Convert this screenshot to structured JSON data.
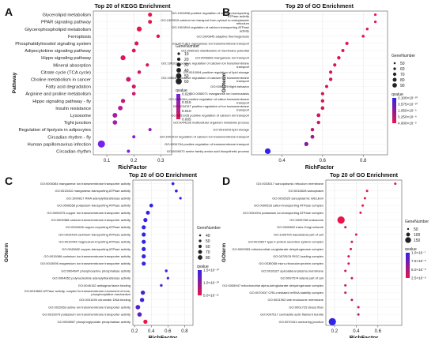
{
  "panels": [
    {
      "letter": "A",
      "chart_data": {
        "type": "scatter",
        "title": "Top 20 of KEGG Enrichment",
        "xlabel": "RichFactor",
        "ylabel": "Pathway",
        "xlim": [
          0.05,
          0.34
        ],
        "xticks": [
          0.1,
          0.2,
          0.3
        ],
        "xtick_labels": [
          "0.1",
          "0.2",
          "0.3"
        ],
        "size_legend_title": "GeneNumber",
        "size_legend": [
          10,
          20,
          30,
          40,
          50,
          60
        ],
        "color_legend_title": "qvalue",
        "color_legend_labels": [
          "0.020",
          "0.015",
          "0.010",
          "0.005"
        ],
        "color_scale": [
          "#e8144a",
          "#7722e8"
        ],
        "categories": [
          "Glycerolipid metabolism",
          "PPAR signaling pathway",
          "Glycerophospholipid metabolism",
          "Ferroptosis",
          "Phosphatidylinositol signaling system",
          "Adipocytokine signaling pathway",
          "Hippo signaling pathway",
          "Mineral absorption",
          "Citrate cycle (TCA cycle)",
          "Choline metabolism in cancer",
          "Fatty acid degradation",
          "Arginine and proline metabolism",
          "Hippo signaling pathway - fly",
          "Insulin resistance",
          "Lysosome",
          "Tight junction",
          "Regulation of lipolysis in adipocytes",
          "Circadian rhythm - fly",
          "Human papillomavirus infection",
          "Circadian rhythm"
        ],
        "x": [
          0.26,
          0.26,
          0.22,
          0.29,
          0.21,
          0.2,
          0.16,
          0.25,
          0.22,
          0.18,
          0.2,
          0.2,
          0.16,
          0.15,
          0.13,
          0.13,
          0.26,
          0.2,
          0.08,
          0.18
        ],
        "gene_number": [
          20,
          18,
          30,
          14,
          20,
          18,
          30,
          12,
          15,
          28,
          20,
          16,
          22,
          26,
          28,
          25,
          8,
          6,
          55,
          6
        ],
        "qvalue": [
          0.004,
          0.004,
          0.004,
          0.004,
          0.005,
          0.005,
          0.005,
          0.006,
          0.007,
          0.008,
          0.007,
          0.008,
          0.009,
          0.011,
          0.013,
          0.014,
          0.016,
          0.018,
          0.02,
          0.019
        ]
      }
    },
    {
      "letter": "B",
      "chart_data": {
        "type": "scatter",
        "title": "Top 20 of GO Enrichment",
        "xlabel": "RichFactor",
        "ylabel": "GOterm",
        "xlim": [
          0.25,
          0.92
        ],
        "xticks": [
          0.4,
          0.6,
          0.8
        ],
        "xtick_labels": [
          "0.4",
          "0.6",
          "0.8"
        ],
        "size_legend_title": "GeneNumber",
        "size_legend": [
          50,
          60,
          70,
          80,
          90
        ],
        "color_legend_title": "qvalue",
        "color_legend_labels": [
          "2.100×10⁻¹⁰",
          "3.575×10⁻¹⁰",
          "1.050×10⁻⁹",
          "5.250×10⁻⁹",
          "4.000×10⁻⁹"
        ],
        "color_scale": [
          "#e8144a",
          "#3322e8"
        ],
        "categories": [
          "GO:1901896 positive regulation of calcium-transporting ATPase activity",
          "GO:1903515 calcium ion transport from cytosol to endoplasmic reticulum",
          "GO:1901894 regulation of calcium-transporting ATPase activity",
          "GO:1990845 adaptive thermogenesis",
          "GO:0071421 manganese ion transmembrane transport",
          "GO:0030322 stabilization of membrane potential",
          "GO:0006828 manganese ion transport",
          "GO:1901021 positive regulation of calcium ion transmembrane transport",
          "GO:0010994 positive regulation of lipid storage",
          "GO:1900407 positive regulation of calcium ion transmembrane transport",
          "GO:0007629 flight behavior",
          "GO:0055071 manganese ion homeostasis",
          "GO:1904064 positive regulation of cation transmembrane transport",
          "GO:0034767 positive regulation of ion transmembrane transport",
          "GO:0051928 positive regulation of calcium ion transport",
          "GO:0044236 multicellular organism metabolic process",
          "GO:0019915 lipid storage",
          "GO:1901019 regulation of calcium ion transmembrane transport",
          "GO:0034764 positive regulation of transmembrane transport",
          "GO:0009070 serine family amino acid biosynthetic process"
        ],
        "x": [
          0.86,
          0.86,
          0.82,
          0.8,
          0.72,
          0.7,
          0.68,
          0.66,
          0.64,
          0.64,
          0.62,
          0.6,
          0.6,
          0.6,
          0.58,
          0.58,
          0.55,
          0.55,
          0.52,
          0.33
        ],
        "gene_number": [
          50,
          50,
          52,
          54,
          60,
          58,
          62,
          60,
          60,
          62,
          58,
          60,
          62,
          64,
          66,
          62,
          62,
          66,
          70,
          90
        ],
        "qvalue": [
          2.1e-10,
          2.1e-10,
          2.2e-10,
          2.4e-10,
          3e-10,
          3.3e-10,
          3.6e-10,
          4e-10,
          4.5e-10,
          4.8e-10,
          5.2e-10,
          6e-10,
          6.5e-10,
          7e-10,
          8e-10,
          9e-10,
          1.2e-09,
          1.6e-09,
          2.4e-09,
          4e-09
        ]
      }
    },
    {
      "letter": "C",
      "chart_data": {
        "type": "scatter",
        "title": "Top 20 of GO Enrichment",
        "xlabel": "RichFactor",
        "ylabel": "GOterm",
        "xlim": [
          0.18,
          0.9
        ],
        "xticks": [
          0.2,
          0.4,
          0.6,
          0.8
        ],
        "xtick_labels": [
          "0.2",
          "0.4",
          "0.6",
          "0.8"
        ],
        "size_legend_title": "GeneNumber",
        "size_legend": [
          40,
          50,
          60,
          70,
          80
        ],
        "color_legend_title": "qvalue",
        "color_legend_labels": [
          "1.5×10⁻¹⁰",
          "1.0×10⁻¹⁰",
          "5.0×10⁻¹¹"
        ],
        "color_scale": [
          "#e8144a",
          "#3322e8"
        ],
        "categories": [
          "GO:0005384 manganese ion transmembrane transporter activity",
          "GO:0015410 manganese-transporting ATPase activity",
          "GO:1990817 RNA adenylyltransferase activity",
          "GO:0008556 potassium-transporting ATPase activity",
          "GO:0005375 copper ion transmembrane transporter activity",
          "GO:0005388 calcium transmembrane transporter activity",
          "GO:0004008 copper-exporting ATPase activity",
          "GO:0015434 cadmium-transporting ATPase activity",
          "GO:0015444 magnesium-importing ATPase activity",
          "GO:0043682 copper-transporting ATPase activity",
          "GO:0015086 cadmium ion transmembrane transporter activity",
          "GO:0015095 magnesium ion transmembrane transporter activity",
          "GO:0004647 phosphoserine phosphatase activity",
          "GO:0004652 polynucleotide adenylyltransferase activity",
          "GO:0046152 antisigma factor binding",
          "GO:0015662 ATPase activity, coupled to transmembrane movement of ions, phosphorylative mechanism",
          "GO:0031490 chromatin DNA binding",
          "GO:0022853 active ion transmembrane transporter activity",
          "GO:0015079 potassium ion transmembrane transporter activity",
          "GO:0008967 phosphoglycolate phosphatase activity"
        ],
        "x": [
          0.66,
          0.7,
          0.75,
          0.4,
          0.36,
          0.33,
          0.31,
          0.31,
          0.31,
          0.31,
          0.31,
          0.31,
          0.58,
          0.6,
          0.52,
          0.3,
          0.29,
          0.24,
          0.26,
          0.33
        ],
        "gene_number": [
          45,
          45,
          40,
          55,
          58,
          60,
          60,
          60,
          60,
          60,
          60,
          60,
          42,
          40,
          42,
          62,
          62,
          66,
          64,
          60
        ],
        "qvalue": [
          1.6e-10,
          1.6e-10,
          1.6e-10,
          1.6e-10,
          1.6e-10,
          1.6e-10,
          1.6e-10,
          1.6e-10,
          1.6e-10,
          1.6e-10,
          1.6e-10,
          1.6e-10,
          1.6e-10,
          1.6e-10,
          1.5e-10,
          1.5e-10,
          1.5e-10,
          1.4e-10,
          1.3e-10,
          4e-11
        ]
      }
    },
    {
      "letter": "D",
      "chart_data": {
        "type": "scatter",
        "title": "Top 20 of GO Enrichment",
        "xlabel": "RichFactor",
        "ylabel": "GOterm",
        "xlim": [
          0.12,
          0.82
        ],
        "xticks": [
          0.2,
          0.4,
          0.6
        ],
        "xtick_labels": [
          "0.2",
          "0.4",
          "0.6"
        ],
        "size_legend_title": "GeneNumber",
        "size_legend": [
          50,
          100,
          150
        ],
        "color_legend_title": "qvalue",
        "color_legend_labels": [
          "1.0×10⁻⁷",
          "7.5×10⁻⁸",
          "5.0×10⁻⁸",
          "2.5×10⁻⁸"
        ],
        "color_scale": [
          "#e8144a",
          "#3322e8"
        ],
        "categories": [
          "GO:0033017 sarcoplasmic reticulum membrane",
          "GO:0016528 sarcoplasm",
          "GO:0016529 sarcoplasmic reticulum",
          "GO:0090533 cation-transporting ATPase complex",
          "GO:0031004 potassium ion-transporting ATPase complex",
          "GO:0005768 endosome",
          "GO:0005802 trans-Golgi network",
          "GO:1990794 basolateral part of cell",
          "GO:0015627 type II protein secretion system complex",
          "GO:0009353 mitochondrial oxoglutarate dehydrogenase complex",
          "GO:0070578 RISC-loading complex",
          "GO:0035068 micro-ribonucleoprotein complex",
          "GO:0016327 apicolateral plasma membrane",
          "GO:0097574 lateral part of cell",
          "GO:0005947 mitochondrial alpha-ketoglutarate dehydrogenase complex",
          "GO:0070937 CRD-mediated mRNA stability complex",
          "GO:0031902 late endosome membrane",
          "GO:0001725 stress fiber",
          "GO:0097517 contractile actin filament bundle",
          "GO:0070161 anchoring junction"
        ],
        "x": [
          0.76,
          0.5,
          0.48,
          0.46,
          0.44,
          0.26,
          0.3,
          0.4,
          0.36,
          0.35,
          0.33,
          0.33,
          0.3,
          0.36,
          0.3,
          0.3,
          0.36,
          0.42,
          0.42,
          0.18
        ],
        "gene_number": [
          30,
          45,
          40,
          30,
          30,
          170,
          40,
          40,
          40,
          40,
          30,
          30,
          40,
          40,
          40,
          40,
          40,
          40,
          40,
          170
        ],
        "qvalue": [
          1e-08,
          1e-08,
          1e-08,
          1e-08,
          1e-08,
          1e-08,
          1.2e-08,
          1.5e-08,
          2e-08,
          2e-08,
          2.2e-08,
          2.2e-08,
          2.5e-08,
          2.6e-08,
          2.8e-08,
          2.8e-08,
          3e-08,
          3.5e-08,
          3.6e-08,
          1e-07
        ]
      }
    }
  ]
}
